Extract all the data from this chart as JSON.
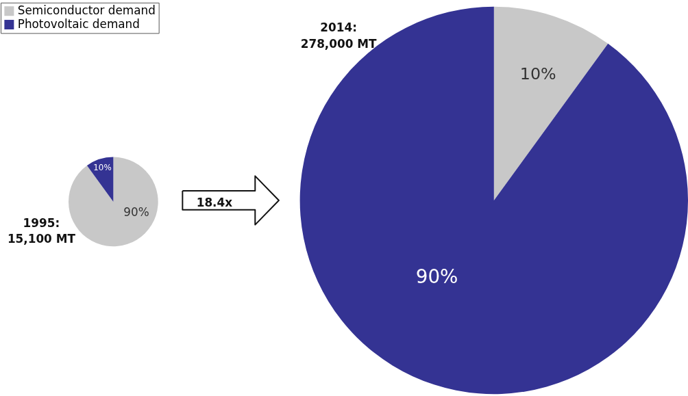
{
  "chart_data": [
    {
      "type": "pie",
      "categories": [
        "Semiconductor demand",
        "Photovoltaic demand"
      ],
      "values": [
        90,
        10
      ],
      "colors": [
        "#c8c8c8",
        "#343393"
      ],
      "value_labels": [
        "90%",
        "10%"
      ],
      "legend": "top left",
      "annotations": [
        "1995:\n15,100 MT",
        "18.4x"
      ]
    },
    {
      "type": "pie",
      "categories": [
        null,
        null
      ],
      "values": [
        10,
        90
      ],
      "colors": [
        "#c8c8c8",
        "#343393"
      ],
      "value_labels": [
        "10%",
        "90%"
      ],
      "annotations": [
        "2014:\n278,000 MT"
      ]
    }
  ]
}
